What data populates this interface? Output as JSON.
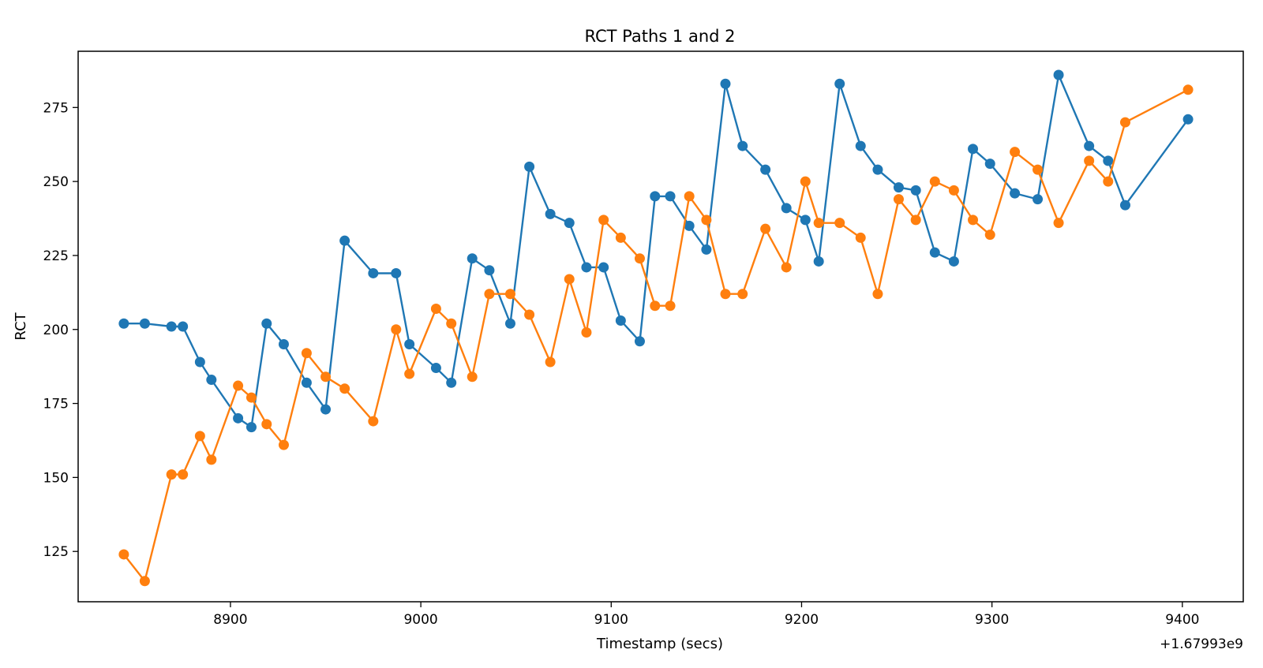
{
  "chart_data": {
    "type": "line",
    "title": "RCT Paths 1 and 2",
    "xlabel": "Timestamp (secs)",
    "ylabel": "RCT",
    "x_offset_label": "+1.67993e9",
    "xlim": [
      8820,
      9432
    ],
    "ylim": [
      108,
      294
    ],
    "x_ticks": [
      8900,
      9000,
      9100,
      9200,
      9300,
      9400
    ],
    "y_ticks": [
      125,
      150,
      175,
      200,
      225,
      250,
      275
    ],
    "grid": false,
    "legend": "none",
    "series": [
      {
        "color": "#1f77b4",
        "points": [
          [
            8844,
            202
          ],
          [
            8855,
            202
          ],
          [
            8869,
            201
          ],
          [
            8875,
            201
          ],
          [
            8884,
            189
          ],
          [
            8890,
            183
          ],
          [
            8904,
            170
          ],
          [
            8911,
            167
          ],
          [
            8919,
            202
          ],
          [
            8928,
            195
          ],
          [
            8940,
            182
          ],
          [
            8950,
            173
          ],
          [
            8960,
            230
          ],
          [
            8975,
            219
          ],
          [
            8987,
            219
          ],
          [
            8994,
            195
          ],
          [
            9008,
            187
          ],
          [
            9016,
            182
          ],
          [
            9027,
            224
          ],
          [
            9036,
            220
          ],
          [
            9047,
            202
          ],
          [
            9057,
            255
          ],
          [
            9068,
            239
          ],
          [
            9078,
            236
          ],
          [
            9087,
            221
          ],
          [
            9096,
            221
          ],
          [
            9105,
            203
          ],
          [
            9115,
            196
          ],
          [
            9123,
            245
          ],
          [
            9131,
            245
          ],
          [
            9141,
            235
          ],
          [
            9150,
            227
          ],
          [
            9160,
            283
          ],
          [
            9169,
            262
          ],
          [
            9181,
            254
          ],
          [
            9192,
            241
          ],
          [
            9202,
            237
          ],
          [
            9209,
            223
          ],
          [
            9220,
            283
          ],
          [
            9231,
            262
          ],
          [
            9240,
            254
          ],
          [
            9251,
            248
          ],
          [
            9260,
            247
          ],
          [
            9270,
            226
          ],
          [
            9280,
            223
          ],
          [
            9290,
            261
          ],
          [
            9299,
            256
          ],
          [
            9312,
            246
          ],
          [
            9324,
            244
          ],
          [
            9335,
            286
          ],
          [
            9351,
            262
          ],
          [
            9361,
            257
          ],
          [
            9370,
            242
          ],
          [
            9403,
            271
          ]
        ]
      },
      {
        "color": "#ff7f0e",
        "points": [
          [
            8844,
            124
          ],
          [
            8855,
            115
          ],
          [
            8869,
            151
          ],
          [
            8875,
            151
          ],
          [
            8884,
            164
          ],
          [
            8890,
            156
          ],
          [
            8904,
            181
          ],
          [
            8911,
            177
          ],
          [
            8919,
            168
          ],
          [
            8928,
            161
          ],
          [
            8940,
            192
          ],
          [
            8950,
            184
          ],
          [
            8960,
            180
          ],
          [
            8975,
            169
          ],
          [
            8987,
            200
          ],
          [
            8994,
            185
          ],
          [
            9008,
            207
          ],
          [
            9016,
            202
          ],
          [
            9027,
            184
          ],
          [
            9036,
            212
          ],
          [
            9047,
            212
          ],
          [
            9057,
            205
          ],
          [
            9068,
            189
          ],
          [
            9078,
            217
          ],
          [
            9087,
            199
          ],
          [
            9096,
            237
          ],
          [
            9105,
            231
          ],
          [
            9115,
            224
          ],
          [
            9123,
            208
          ],
          [
            9131,
            208
          ],
          [
            9141,
            245
          ],
          [
            9150,
            237
          ],
          [
            9160,
            212
          ],
          [
            9169,
            212
          ],
          [
            9181,
            234
          ],
          [
            9192,
            221
          ],
          [
            9202,
            250
          ],
          [
            9209,
            236
          ],
          [
            9220,
            236
          ],
          [
            9231,
            231
          ],
          [
            9240,
            212
          ],
          [
            9251,
            244
          ],
          [
            9260,
            237
          ],
          [
            9270,
            250
          ],
          [
            9280,
            247
          ],
          [
            9290,
            237
          ],
          [
            9299,
            232
          ],
          [
            9312,
            260
          ],
          [
            9324,
            254
          ],
          [
            9335,
            236
          ],
          [
            9351,
            257
          ],
          [
            9361,
            250
          ],
          [
            9370,
            270
          ],
          [
            9403,
            281
          ]
        ]
      }
    ]
  }
}
